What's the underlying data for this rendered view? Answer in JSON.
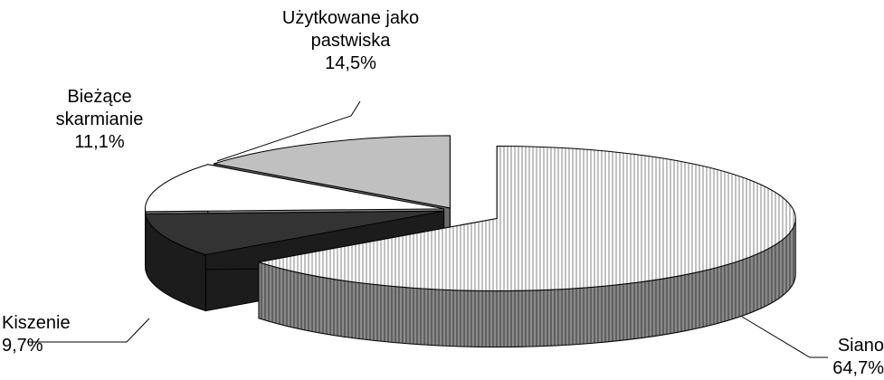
{
  "chart_data": {
    "type": "pie3d",
    "categories": [
      "Siano",
      "Kiszenie",
      "Bieżące skarmianie",
      "Użytkowane jako pastwiska"
    ],
    "values": [
      64.7,
      9.7,
      11.1,
      14.5
    ],
    "value_labels": [
      "64,7%",
      "9,7%",
      "11,1%",
      "14,5%"
    ],
    "colors": [
      "#9a9a9a",
      "#333333",
      "#ffffff",
      "#c0c0c0"
    ]
  }
}
